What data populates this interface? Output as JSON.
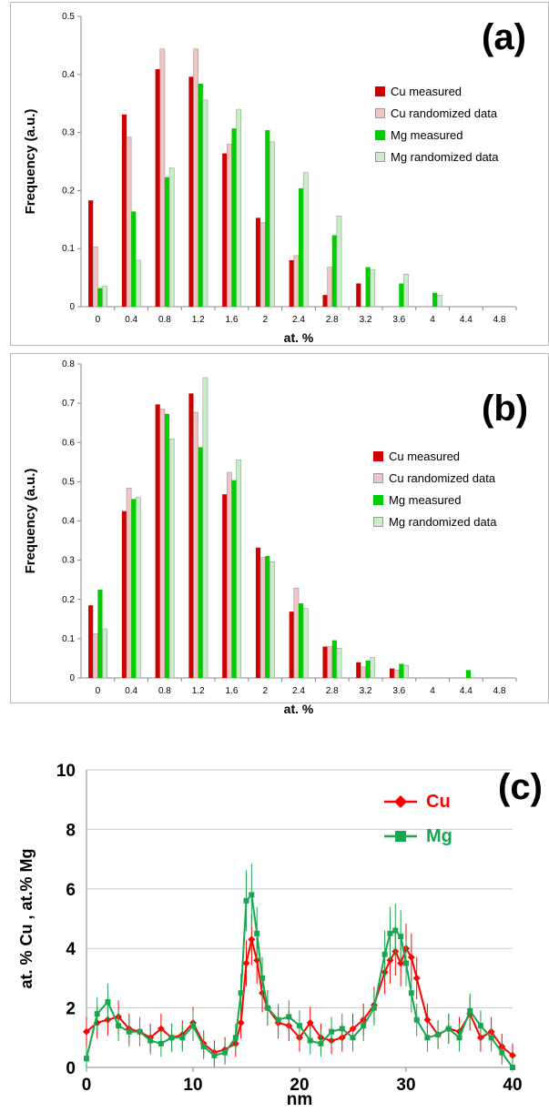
{
  "chart_data": [
    {
      "type": "bar",
      "panel_label": "(a)",
      "xlabel": "at. %",
      "ylabel": "Frequency (a.u.)",
      "ylim": [
        0,
        0.5
      ],
      "yticks": [
        "0",
        "0.1",
        "0.2",
        "0.3",
        "0.4",
        "0.5"
      ],
      "categories": [
        "0",
        "0.4",
        "0.8",
        "1.2",
        "1.6",
        "2",
        "2.4",
        "2.8",
        "3.2",
        "3.6",
        "4",
        "4.4",
        "4.8"
      ],
      "grid": false,
      "legend_position": "right",
      "series": [
        {
          "name": "Cu measured",
          "color": "#cc0000",
          "values": [
            0.183,
            0.331,
            0.409,
            0.396,
            0.264,
            0.153,
            0.08,
            0.02,
            0.04,
            0,
            0,
            0,
            0
          ]
        },
        {
          "name": "Cu randomized data",
          "color": "#f2c4c4",
          "values": [
            0.103,
            0.292,
            0.444,
            0.444,
            0.28,
            0.145,
            0.088,
            0.068,
            0,
            0,
            0,
            0,
            0
          ]
        },
        {
          "name": "Mg measured",
          "color": "#00cc00",
          "values": [
            0.032,
            0.164,
            0.223,
            0.384,
            0.307,
            0.304,
            0.204,
            0.123,
            0.068,
            0.04,
            0.024,
            0,
            0
          ]
        },
        {
          "name": "Mg randomized data",
          "color": "#c8eec8",
          "values": [
            0.035,
            0.08,
            0.239,
            0.356,
            0.34,
            0.284,
            0.231,
            0.156,
            0.064,
            0.056,
            0.02,
            0,
            0
          ]
        }
      ]
    },
    {
      "type": "bar",
      "panel_label": "(b)",
      "xlabel": "at. %",
      "ylabel": "Frequency (a.u.)",
      "ylim": [
        0,
        0.8
      ],
      "yticks": [
        "0",
        "0.1",
        "0.2",
        "0.3",
        "0.4",
        "0.5",
        "0.6",
        "0.7",
        "0.8"
      ],
      "categories": [
        "0",
        "0.4",
        "0.8",
        "1.2",
        "1.6",
        "2",
        "2.4",
        "2.8",
        "3.2",
        "3.6",
        "4",
        "4.4",
        "4.8"
      ],
      "grid": false,
      "legend_position": "right",
      "series": [
        {
          "name": "Cu measured",
          "color": "#cc0000",
          "values": [
            0.185,
            0.425,
            0.697,
            0.725,
            0.468,
            0.332,
            0.169,
            0.08,
            0.04,
            0.024,
            0,
            0,
            0
          ]
        },
        {
          "name": "Cu randomized data",
          "color": "#f2c4c4",
          "values": [
            0.113,
            0.484,
            0.685,
            0.677,
            0.524,
            0.307,
            0.229,
            0.08,
            0.028,
            0.02,
            0,
            0,
            0
          ]
        },
        {
          "name": "Mg measured",
          "color": "#00cc00",
          "values": [
            0.225,
            0.456,
            0.673,
            0.588,
            0.504,
            0.311,
            0.19,
            0.096,
            0.044,
            0.036,
            0,
            0.02,
            0
          ]
        },
        {
          "name": "Mg randomized data",
          "color": "#c8eec8",
          "values": [
            0.125,
            0.46,
            0.609,
            0.765,
            0.556,
            0.296,
            0.177,
            0.076,
            0.052,
            0.032,
            0,
            0,
            0
          ]
        }
      ]
    },
    {
      "type": "line",
      "panel_label": "(c)",
      "xlabel": "nm",
      "ylabel": "at. % Cu , at.% Mg",
      "xlim": [
        0,
        40
      ],
      "ylim": [
        0,
        10
      ],
      "xticks": [
        "0",
        "10",
        "20",
        "30",
        "40"
      ],
      "yticks": [
        "0",
        "2",
        "4",
        "6",
        "8",
        "10"
      ],
      "grid": true,
      "legend_position": "top-right",
      "series": [
        {
          "name": "Cu",
          "color": "#ff0000",
          "marker": "diamond",
          "x": [
            0,
            1,
            2,
            3,
            4,
            5,
            6,
            7,
            8,
            9,
            10,
            11,
            12,
            13,
            14,
            14.5,
            15,
            15.5,
            16,
            16.5,
            17,
            18,
            19,
            20,
            21,
            22,
            23,
            24,
            25,
            26,
            27,
            28,
            28.5,
            29,
            29.5,
            30,
            30.5,
            31,
            32,
            33,
            34,
            35,
            36,
            37,
            38,
            39,
            40
          ],
          "y": [
            1.2,
            1.5,
            1.6,
            1.7,
            1.3,
            1.2,
            1.0,
            1.3,
            1.0,
            1.1,
            1.5,
            0.8,
            0.5,
            0.6,
            0.8,
            1.5,
            3.5,
            4.3,
            3.6,
            2.5,
            2.0,
            1.5,
            1.4,
            1.0,
            1.5,
            1.0,
            0.9,
            1.0,
            1.3,
            1.6,
            2.1,
            3.2,
            3.6,
            3.9,
            3.5,
            4.0,
            3.7,
            3.0,
            1.6,
            1.1,
            1.3,
            1.2,
            1.8,
            1.0,
            1.2,
            0.7,
            0.4
          ]
        },
        {
          "name": "Mg",
          "color": "#1aa650",
          "marker": "square",
          "x": [
            0,
            1,
            2,
            3,
            4,
            5,
            6,
            7,
            8,
            9,
            10,
            11,
            12,
            13,
            14,
            14.5,
            15,
            15.5,
            16,
            16.5,
            17,
            18,
            19,
            20,
            21,
            22,
            23,
            24,
            25,
            26,
            27,
            28,
            28.5,
            29,
            29.5,
            30,
            30.5,
            31,
            32,
            33,
            34,
            35,
            36,
            37,
            38,
            39,
            40
          ],
          "y": [
            0.3,
            1.8,
            2.2,
            1.4,
            1.2,
            1.2,
            0.9,
            0.8,
            1.0,
            1.0,
            1.4,
            0.7,
            0.4,
            0.5,
            1.0,
            2.5,
            5.6,
            5.8,
            4.5,
            3.0,
            2.0,
            1.6,
            1.7,
            1.4,
            0.9,
            0.8,
            1.2,
            1.3,
            1.0,
            1.4,
            2.0,
            3.8,
            4.5,
            4.6,
            4.4,
            3.5,
            2.5,
            1.6,
            1.0,
            1.1,
            1.3,
            1.0,
            1.9,
            1.4,
            1.0,
            0.5,
            0.0
          ]
        }
      ]
    }
  ]
}
